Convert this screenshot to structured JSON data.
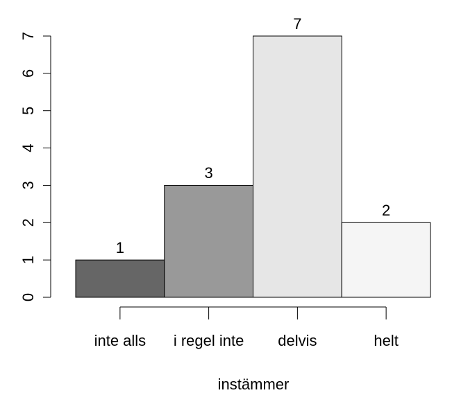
{
  "chart_data": {
    "type": "bar",
    "categories": [
      "inte alls",
      "i regel inte",
      "delvis",
      "helt"
    ],
    "values": [
      1,
      3,
      7,
      2
    ],
    "colors": [
      "#666666",
      "#999999",
      "#e6e6e6",
      "#f5f5f5"
    ],
    "x_label": "instämmer",
    "ylim": [
      0,
      7
    ],
    "yticks": [
      0,
      1,
      2,
      3,
      4,
      5,
      6,
      7
    ]
  }
}
